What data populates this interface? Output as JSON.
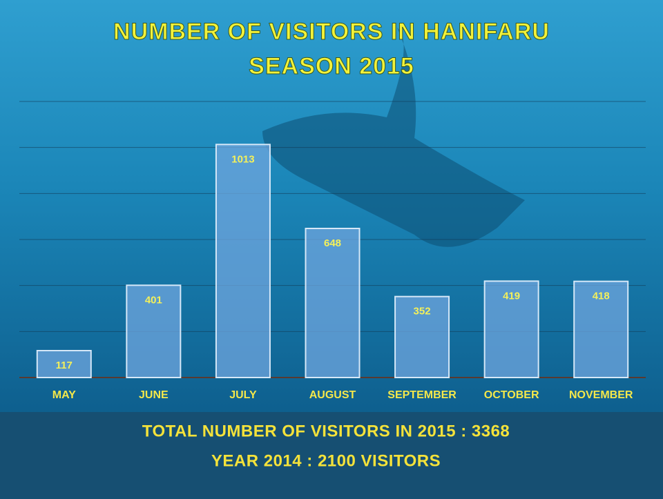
{
  "chart_data": {
    "type": "bar",
    "title": "NUMBER OF VISITORS IN HANIFARU",
    "subtitle": "SEASON 2015",
    "categories": [
      "MAY",
      "JUNE",
      "JULY",
      "AUGUST",
      "SEPTEMBER",
      "OCTOBER",
      "NOVEMBER"
    ],
    "values": [
      117,
      401,
      1013,
      648,
      352,
      419,
      418
    ],
    "color": "#6fa6dd",
    "ylim": [
      0,
      1200
    ],
    "yticks": [
      0,
      200,
      400,
      600,
      800,
      1000,
      1200
    ],
    "grid": true,
    "annotations": [
      "TOTAL NUMBER OF VISITORS IN 2015 : 3368",
      "YEAR 2014 : 2100 VISITORS"
    ]
  }
}
